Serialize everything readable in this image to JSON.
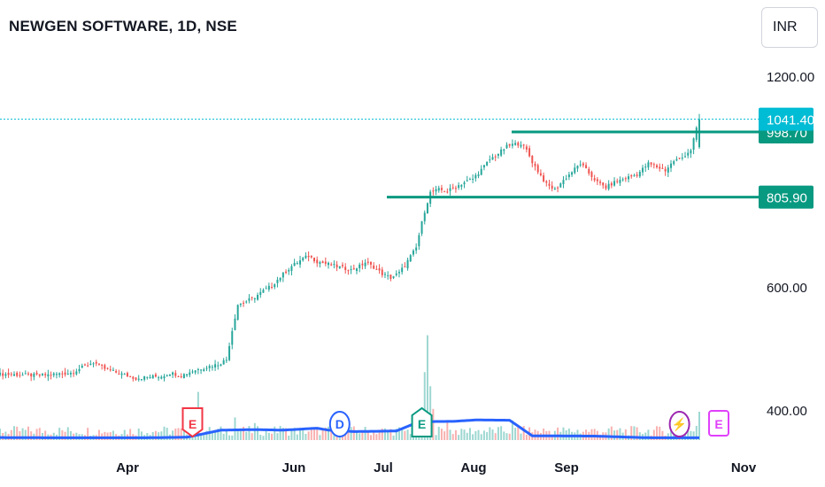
{
  "header": {
    "title": "NEWGEN SOFTWARE, 1D, NSE",
    "currency": "INR"
  },
  "colors": {
    "up": "#26a69a",
    "down": "#ef5350",
    "level_line": "#089981",
    "last_price": "#00bcd4",
    "volume_ma": "#2962ff",
    "earnings_e_red": "#f23645",
    "earnings_e_green": "#089981",
    "dividend": "#2962ff",
    "split": "#9c27b0",
    "upcoming_e": "#e040fb"
  },
  "chart_data": {
    "type": "candlestick",
    "symbol": "NEWGEN SOFTWARE",
    "interval": "1D",
    "exchange": "NSE",
    "y_axis": {
      "ticks": [
        {
          "value": 1200,
          "label": "1200.00"
        },
        {
          "value": 600,
          "label": "600.00"
        },
        {
          "value": 400,
          "label": "400.00"
        }
      ],
      "range": [
        360,
        1250
      ],
      "scale": "log"
    },
    "x_axis": {
      "ticks": [
        "Apr",
        "Jun",
        "Jul",
        "Aug",
        "Sep",
        "Nov"
      ]
    },
    "last_price": {
      "value": 1041.4,
      "label": "1041.40"
    },
    "levels": [
      {
        "value": 998.7,
        "label": "998.70"
      },
      {
        "value": 805.9,
        "label": "805.90"
      }
    ],
    "price_path": [
      [
        0,
        450
      ],
      [
        14,
        448
      ],
      [
        25,
        452
      ],
      [
        33,
        468
      ],
      [
        37,
        458
      ],
      [
        43,
        450
      ],
      [
        48,
        444
      ],
      [
        53,
        446
      ],
      [
        57,
        447
      ],
      [
        60,
        452
      ],
      [
        64,
        448
      ],
      [
        68,
        455
      ],
      [
        73,
        461
      ],
      [
        77,
        465
      ],
      [
        80,
        472
      ],
      [
        82,
        520
      ],
      [
        84,
        566
      ],
      [
        87,
        572
      ],
      [
        90,
        580
      ],
      [
        93,
        592
      ],
      [
        96,
        602
      ],
      [
        100,
        626
      ],
      [
        103,
        642
      ],
      [
        107,
        658
      ],
      [
        109,
        664
      ],
      [
        112,
        652
      ],
      [
        116,
        646
      ],
      [
        120,
        640
      ],
      [
        124,
        634
      ],
      [
        127,
        642
      ],
      [
        129,
        650
      ],
      [
        132,
        640
      ],
      [
        135,
        626
      ],
      [
        138,
        618
      ],
      [
        141,
        628
      ],
      [
        143,
        644
      ],
      [
        147,
        682
      ],
      [
        150,
        770
      ],
      [
        152,
        818
      ],
      [
        155,
        826
      ],
      [
        158,
        822
      ],
      [
        161,
        834
      ],
      [
        164,
        846
      ],
      [
        167,
        856
      ],
      [
        170,
        882
      ],
      [
        173,
        912
      ],
      [
        176,
        930
      ],
      [
        179,
        952
      ],
      [
        181,
        958
      ],
      [
        184,
        962
      ],
      [
        186,
        940
      ],
      [
        188,
        905
      ],
      [
        190,
        878
      ],
      [
        193,
        840
      ],
      [
        196,
        826
      ],
      [
        199,
        852
      ],
      [
        202,
        876
      ],
      [
        205,
        900
      ],
      [
        208,
        872
      ],
      [
        211,
        846
      ],
      [
        214,
        832
      ],
      [
        217,
        846
      ],
      [
        221,
        858
      ],
      [
        225,
        868
      ],
      [
        229,
        900
      ],
      [
        232,
        890
      ],
      [
        235,
        880
      ],
      [
        238,
        908
      ],
      [
        241,
        918
      ],
      [
        244,
        942
      ],
      [
        247,
        1041
      ]
    ],
    "volume_ma_path": [
      [
        0,
        0.9
      ],
      [
        20,
        0.8
      ],
      [
        50,
        0.8
      ],
      [
        66,
        1.0
      ],
      [
        78,
        3.5
      ],
      [
        90,
        3.7
      ],
      [
        100,
        3.5
      ],
      [
        112,
        4.2
      ],
      [
        116,
        3.5
      ],
      [
        125,
        3.0
      ],
      [
        140,
        3.2
      ],
      [
        148,
        6.5
      ],
      [
        160,
        6.6
      ],
      [
        168,
        7.1
      ],
      [
        180,
        7.0
      ],
      [
        188,
        1.5
      ],
      [
        210,
        1.4
      ],
      [
        230,
        0.8
      ],
      [
        247,
        0.8
      ]
    ],
    "volume_spikes": [
      {
        "day": 70,
        "value": 17
      },
      {
        "day": 83,
        "value": 8
      },
      {
        "day": 90,
        "value": 6
      },
      {
        "day": 99,
        "value": 5
      },
      {
        "day": 147,
        "value": 5
      },
      {
        "day": 148,
        "value": 8
      },
      {
        "day": 150,
        "value": 24
      },
      {
        "day": 151,
        "value": 37
      },
      {
        "day": 152,
        "value": 19
      },
      {
        "day": 153,
        "value": 11
      },
      {
        "day": 158,
        "value": 7
      },
      {
        "day": 163,
        "value": 4
      },
      {
        "day": 181,
        "value": 7
      },
      {
        "day": 183,
        "value": 5
      },
      {
        "day": 246,
        "value": 5
      },
      {
        "day": 247,
        "value": 10
      }
    ],
    "total_days": 247,
    "events": [
      {
        "type": "earnings",
        "label": "E",
        "day": 68,
        "color": "#f23645",
        "shape": "flag-down"
      },
      {
        "type": "dividend",
        "label": "D",
        "day": 120,
        "color": "#2962ff",
        "shape": "circle"
      },
      {
        "type": "earnings",
        "label": "E",
        "day": 149,
        "color": "#089981",
        "shape": "flag-up"
      },
      {
        "type": "split",
        "label": "⚡",
        "day": 240,
        "color": "#9c27b0",
        "shape": "circle"
      },
      {
        "type": "earnings-upcoming",
        "label": "E",
        "day": 247,
        "color": "#e040fb",
        "shape": "square"
      }
    ]
  }
}
